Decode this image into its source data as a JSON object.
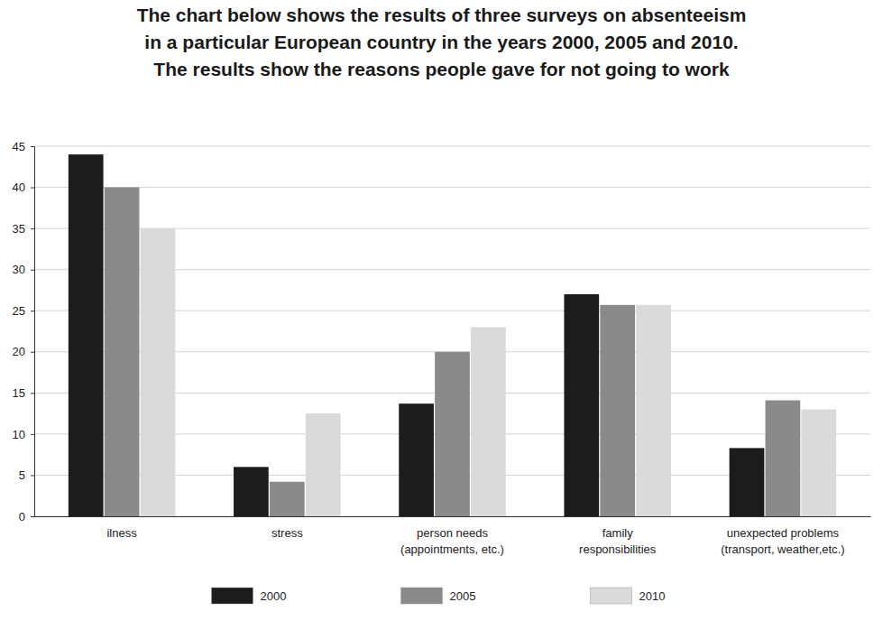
{
  "chart_data": {
    "type": "bar",
    "title": "The chart below shows the results of three surveys on absenteeism\nin a particular European country in the years 2000, 2005 and 2010.\nThe results show the reasons people gave for not going to work",
    "categories": [
      "ilness",
      "stress",
      "person needs\n(appointments, etc.)",
      "family\nresponsibilities",
      "unexpected problems\n(transport, weather,etc.)"
    ],
    "series": [
      {
        "name": "2000",
        "color": "#1c1c1c",
        "values": [
          44,
          6,
          13.7,
          27,
          8.3
        ]
      },
      {
        "name": "2005",
        "color": "#8a8a8a",
        "values": [
          40,
          4.2,
          20,
          25.7,
          14.1
        ]
      },
      {
        "name": "2010",
        "color": "#dadada",
        "values": [
          35,
          12.5,
          23,
          25.7,
          13
        ]
      }
    ],
    "ylim": [
      0,
      45
    ],
    "yticks": [
      0,
      5,
      10,
      15,
      20,
      25,
      30,
      35,
      40,
      45
    ],
    "grid": true,
    "legend": "bottom"
  }
}
